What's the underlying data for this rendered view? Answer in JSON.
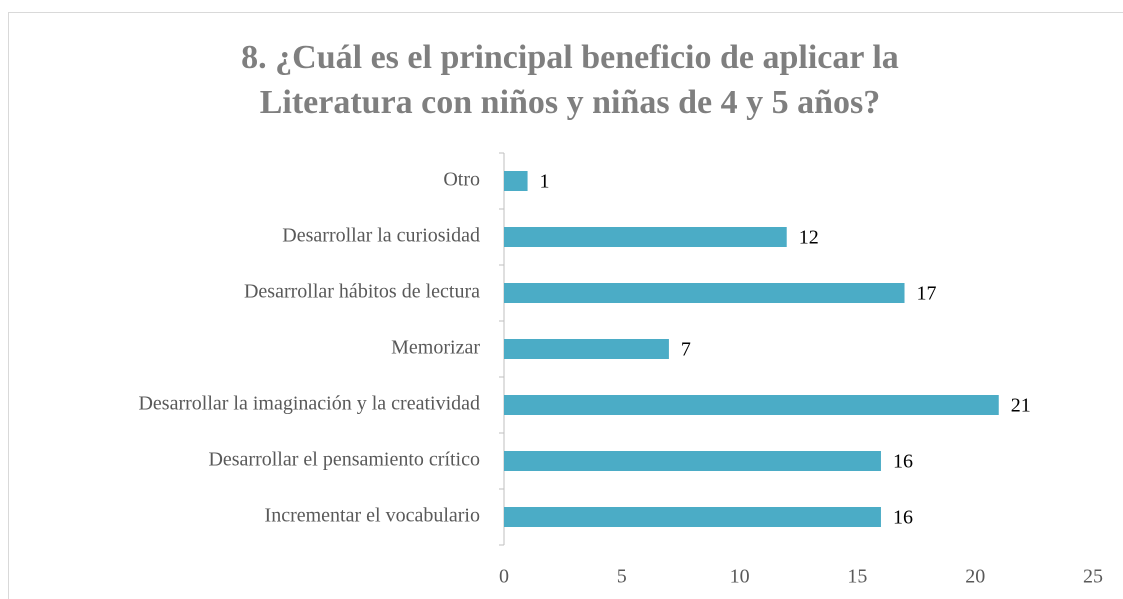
{
  "chart_data": {
    "type": "bar",
    "orientation": "horizontal",
    "title": [
      "8. ¿Cuál es el principal beneficio de aplicar la",
      "Literatura con niños y niñas de 4 y 5 años?"
    ],
    "categories": [
      "Otro",
      "Desarrollar la curiosidad",
      "Desarrollar hábitos de lectura",
      "Memorizar",
      "Desarrollar la imaginación y la creatividad",
      "Desarrollar el pensamiento crítico",
      "Incrementar el vocabulario"
    ],
    "values": [
      1,
      12,
      17,
      7,
      21,
      16,
      16
    ],
    "color": "#4bacc6",
    "xlim": [
      0,
      25
    ],
    "xticks": [
      0,
      5,
      10,
      15,
      20,
      25
    ],
    "grid": false
  }
}
